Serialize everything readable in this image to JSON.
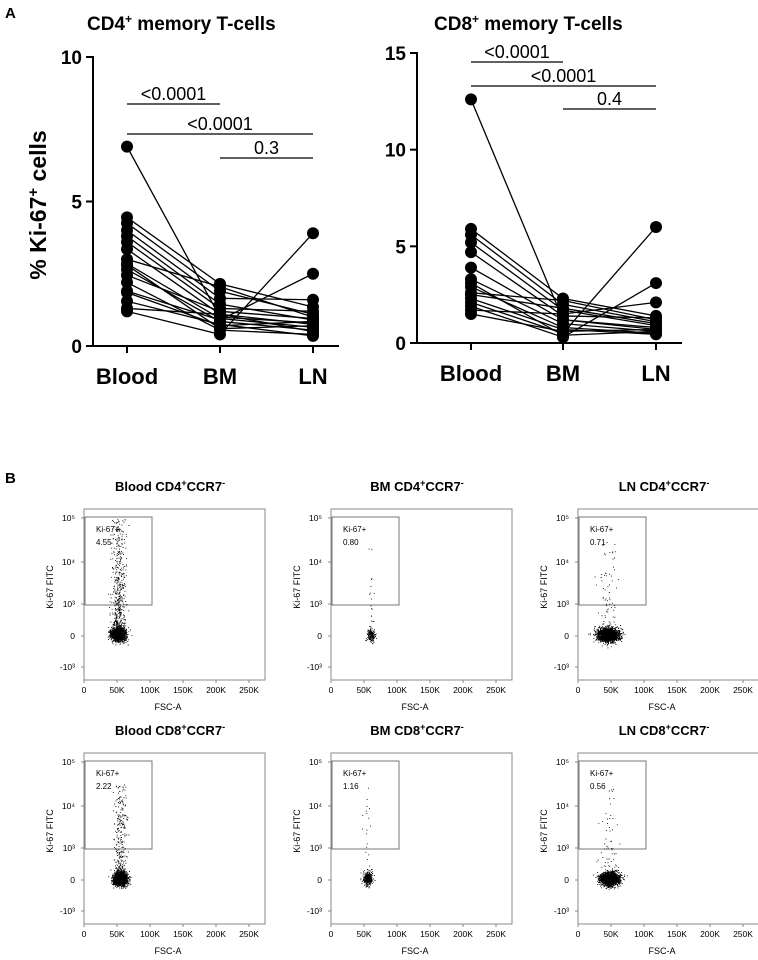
{
  "panel_labels": {
    "a": "A",
    "b": "B"
  },
  "chart_data": [
    {
      "type": "line",
      "id": "cd4_ki67",
      "title": "CD4",
      "title_sup": "+",
      "title_rest": " memory T-cells",
      "ylabel": "% Ki-67",
      "ylabel_sup": "+",
      "ylabel_rest": " cells",
      "categories": [
        "Blood",
        "BM",
        "LN"
      ],
      "ylim": [
        0,
        10
      ],
      "yticks": [
        0,
        5,
        10
      ],
      "paired_series": [
        [
          6.9,
          1.0,
          0.8
        ],
        [
          4.45,
          2.15,
          1.35
        ],
        [
          4.25,
          1.9,
          1.1
        ],
        [
          4.0,
          1.65,
          1.6
        ],
        [
          3.8,
          1.45,
          0.9
        ],
        [
          3.6,
          1.3,
          1.2
        ],
        [
          3.35,
          1.1,
          0.75
        ],
        [
          2.85,
          0.95,
          0.65
        ],
        [
          2.65,
          0.85,
          0.55
        ],
        [
          2.45,
          1.2,
          0.95
        ],
        [
          2.2,
          0.55,
          0.4
        ],
        [
          1.85,
          0.7,
          0.85
        ],
        [
          1.55,
          0.75,
          0.35
        ],
        [
          1.2,
          0.4,
          3.9
        ],
        [
          1.9,
          0.9,
          2.5
        ],
        [
          3.0,
          2.05,
          1.0
        ],
        [
          2.8,
          0.6,
          0.7
        ],
        [
          1.3,
          1.1,
          0.5
        ]
      ],
      "comparisons": [
        {
          "from": "Blood",
          "to": "BM",
          "label": "<0.0001"
        },
        {
          "from": "Blood",
          "to": "LN",
          "label": "<0.0001"
        },
        {
          "from": "BM",
          "to": "LN",
          "label": "0.3"
        }
      ]
    },
    {
      "type": "line",
      "id": "cd8_ki67",
      "title": "CD8",
      "title_sup": "+",
      "title_rest": " memory T-cells",
      "categories": [
        "Blood",
        "BM",
        "LN"
      ],
      "ylim": [
        0,
        15
      ],
      "yticks": [
        0,
        5,
        10,
        15
      ],
      "paired_series": [
        [
          12.6,
          1.2,
          0.7
        ],
        [
          5.9,
          2.3,
          1.4
        ],
        [
          5.6,
          2.0,
          1.1
        ],
        [
          5.2,
          1.7,
          0.9
        ],
        [
          4.7,
          1.4,
          1.3
        ],
        [
          3.9,
          1.2,
          0.8
        ],
        [
          3.3,
          1.0,
          0.6
        ],
        [
          2.9,
          0.8,
          0.5
        ],
        [
          2.6,
          2.2,
          1.2
        ],
        [
          2.3,
          0.7,
          0.45
        ],
        [
          2.1,
          0.5,
          6.0
        ],
        [
          1.9,
          0.3,
          3.1
        ],
        [
          1.7,
          1.5,
          2.1
        ],
        [
          1.5,
          0.6,
          0.7
        ],
        [
          2.5,
          1.8,
          1.0
        ],
        [
          3.1,
          0.4,
          0.6
        ]
      ],
      "comparisons": [
        {
          "from": "Blood",
          "to": "BM",
          "label": "<0.0001"
        },
        {
          "from": "Blood",
          "to": "LN",
          "label": "<0.0001"
        },
        {
          "from": "BM",
          "to": "LN",
          "label": "0.4"
        }
      ]
    },
    {
      "type": "scatter",
      "id": "flow_blood_cd4",
      "title": "Blood CD4",
      "title_sup": "+",
      "title_mid": "CCR7",
      "title_sup2": "-",
      "gate_label": "Ki-67+",
      "gate_value": "4.55",
      "xlabel": "FSC-A",
      "ylabel": "Ki-67 FITC",
      "xticks": [
        "0",
        "50K",
        "100K",
        "150K",
        "200K",
        "250K"
      ],
      "yticks": [
        "-10³",
        "0",
        "10³",
        "10⁴",
        "10⁵"
      ],
      "population": {
        "center_k": 52,
        "spread_k": 12,
        "count": 2100,
        "positive_fraction": 0.0455
      }
    },
    {
      "type": "scatter",
      "id": "flow_bm_cd4",
      "title": "BM CD4",
      "title_sup": "+",
      "title_mid": "CCR7",
      "title_sup2": "-",
      "gate_label": "Ki-67+",
      "gate_value": "0.80",
      "xlabel": "FSC-A",
      "ylabel": "Ki-67 FITC",
      "xticks": [
        "0",
        "50K",
        "100K",
        "150K",
        "200K",
        "250K"
      ],
      "yticks": [
        "-10³",
        "0",
        "10³",
        "10⁴",
        "10⁵"
      ],
      "population": {
        "center_k": 60,
        "spread_k": 6,
        "count": 220,
        "positive_fraction": 0.008
      }
    },
    {
      "type": "scatter",
      "id": "flow_ln_cd4",
      "title": "LN CD4",
      "title_sup": "+",
      "title_mid": "CCR7",
      "title_sup2": "-",
      "gate_label": "Ki-67+",
      "gate_value": "0.71",
      "xlabel": "FSC-A",
      "ylabel": "Ki-67 FITC",
      "xticks": [
        "0",
        "50K",
        "100K",
        "150K",
        "200K",
        "250K"
      ],
      "yticks": [
        "-10³",
        "0",
        "10³",
        "10⁴",
        "10⁵"
      ],
      "population": {
        "center_k": 45,
        "spread_k": 18,
        "count": 2300,
        "positive_fraction": 0.0071
      }
    },
    {
      "type": "scatter",
      "id": "flow_blood_cd8",
      "title": "Blood CD8",
      "title_sup": "+",
      "title_mid": "CCR7",
      "title_sup2": "-",
      "gate_label": "Ki-67+",
      "gate_value": "2.22",
      "xlabel": "FSC-A",
      "ylabel": "Ki-67 FITC",
      "xticks": [
        "0",
        "50K",
        "100K",
        "150K",
        "200K",
        "250K"
      ],
      "yticks": [
        "-10³",
        "0",
        "10³",
        "10⁴",
        "10⁵"
      ],
      "population": {
        "center_k": 55,
        "spread_k": 11,
        "count": 2200,
        "positive_fraction": 0.0222
      }
    },
    {
      "type": "scatter",
      "id": "flow_bm_cd8",
      "title": "BM CD8",
      "title_sup": "+",
      "title_mid": "CCR7",
      "title_sup2": "-",
      "gate_label": "Ki-67+",
      "gate_value": "1.16",
      "xlabel": "FSC-A",
      "ylabel": "Ki-67 FITC",
      "xticks": [
        "0",
        "50K",
        "100K",
        "150K",
        "200K",
        "250K"
      ],
      "yticks": [
        "-10³",
        "0",
        "10³",
        "10⁴",
        "10⁵"
      ],
      "population": {
        "center_k": 55,
        "spread_k": 8,
        "count": 380,
        "positive_fraction": 0.0116
      }
    },
    {
      "type": "scatter",
      "id": "flow_ln_cd8",
      "title": "LN CD8",
      "title_sup": "+",
      "title_mid": "CCR7",
      "title_sup2": "-",
      "gate_label": "Ki-67+",
      "gate_value": "0.56",
      "xlabel": "FSC-A",
      "ylabel": "Ki-67 FITC",
      "xticks": [
        "0",
        "50K",
        "100K",
        "150K",
        "200K",
        "250K"
      ],
      "yticks": [
        "-10³",
        "0",
        "10³",
        "10⁴",
        "10⁵"
      ],
      "population": {
        "center_k": 48,
        "spread_k": 16,
        "count": 2000,
        "positive_fraction": 0.0056
      }
    }
  ]
}
